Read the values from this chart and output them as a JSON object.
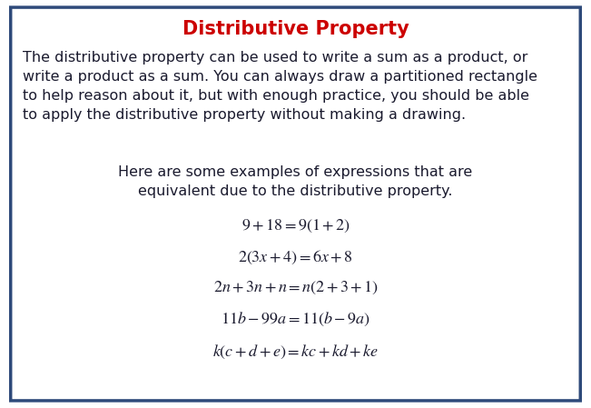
{
  "title": "Distributive Property",
  "title_color": "#cc0000",
  "title_fontsize": 15,
  "body_text": "The distributive property can be used to write a sum as a product, or\nwrite a product as a sum. You can always draw a partitioned rectangle\nto help reason about it, but with enough practice, you should be able\nto apply the distributive property without making a drawing.",
  "body_fontsize": 11.5,
  "body_color": "#1a1a2e",
  "indent_text": "Here are some examples of expressions that are\nequivalent due to the distributive property.",
  "indent_fontsize": 11.5,
  "indent_color": "#1a1a2e",
  "eq_latex": [
    "$9+18=9(1+2)$",
    "$2(3x+4)=6x+8$",
    "$2n+3n+n=n(2+3+1)$",
    "$11b-99a=11(b-9a)$",
    "$k(c+d+e)=kc+kd+ke$"
  ],
  "eq_fontsize": 13,
  "eq_color": "#1a1a2e",
  "background_color": "#ffffff",
  "border_color": "#2e4a7a",
  "border_linewidth": 2.5,
  "fig_width": 6.51,
  "fig_height": 4.49,
  "fig_dpi": 100
}
